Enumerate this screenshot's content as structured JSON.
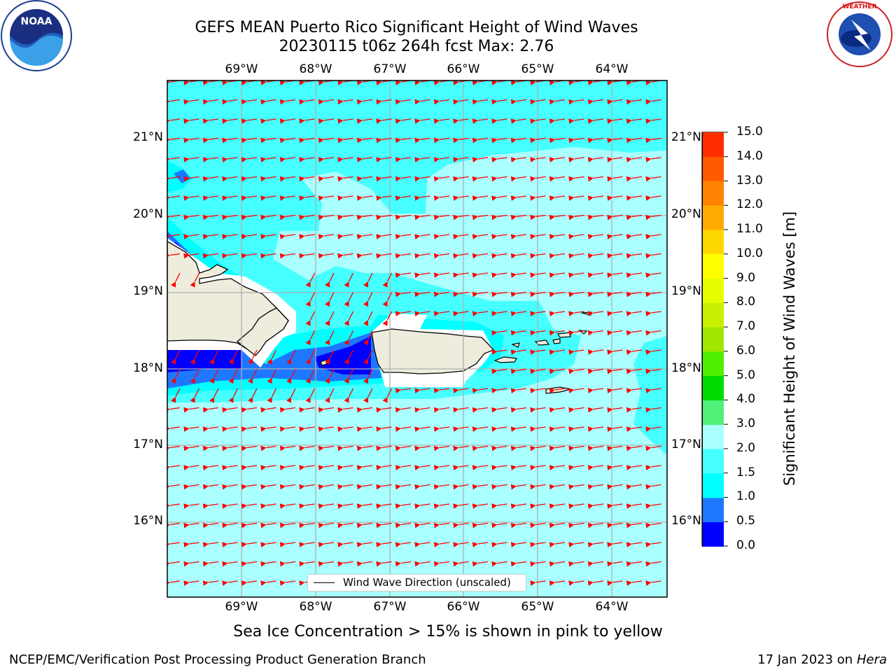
{
  "header": {
    "title_line1": "GEFS MEAN Puerto Rico Significant Height of Wind Waves",
    "title_line2": "20230115 t06z 264h fcst   Max: 2.76"
  },
  "logos": {
    "left": {
      "name": "NOAA",
      "text": "NOAA",
      "ring_text": "NATIONAL OCEANIC AND ATMOSPHERIC ADMINISTRATION · U.S. DEPARTMENT OF COMMERCE"
    },
    "right": {
      "name": "National Weather Service",
      "ring_text": "NATIONAL WEATHER SERVICE"
    }
  },
  "map": {
    "lon_labels": [
      "69°W",
      "68°W",
      "67°W",
      "66°W",
      "65°W",
      "64°W"
    ],
    "lat_labels": [
      "21°N",
      "20°N",
      "19°N",
      "18°N",
      "17°N",
      "16°N"
    ],
    "legend_label": "Wind Wave Direction (unscaled)",
    "arrow_color": "#ff0000",
    "land_color": "#eeecdc",
    "sea_ice_note": "Sea Ice Concentration > 15% is shown in pink to yellow"
  },
  "colorbar": {
    "label": "Significant Height of Wind Waves [m]",
    "ticks": [
      "0.0",
      "0.5",
      "1.0",
      "1.5",
      "2.0",
      "3.0",
      "4.0",
      "5.0",
      "6.0",
      "7.0",
      "8.0",
      "9.0",
      "10.0",
      "11.0",
      "12.0",
      "13.0",
      "14.0",
      "15.0"
    ],
    "colors": [
      "#0000ff",
      "#1e78ff",
      "#00ffff",
      "#46ffff",
      "#aaffff",
      "#50f078",
      "#00dc00",
      "#50f000",
      "#a0e600",
      "#c8f000",
      "#e6ff00",
      "#ffff00",
      "#ffd700",
      "#ffaa00",
      "#ff8200",
      "#ff5a00",
      "#ff2d00",
      "#ff0000"
    ]
  },
  "footer": {
    "left_credit": "NCEP/EMC/Verification Post Processing Product Generation Branch",
    "right_credit_prefix": "17 Jan 2023 on ",
    "right_credit_host": "Hera"
  }
}
